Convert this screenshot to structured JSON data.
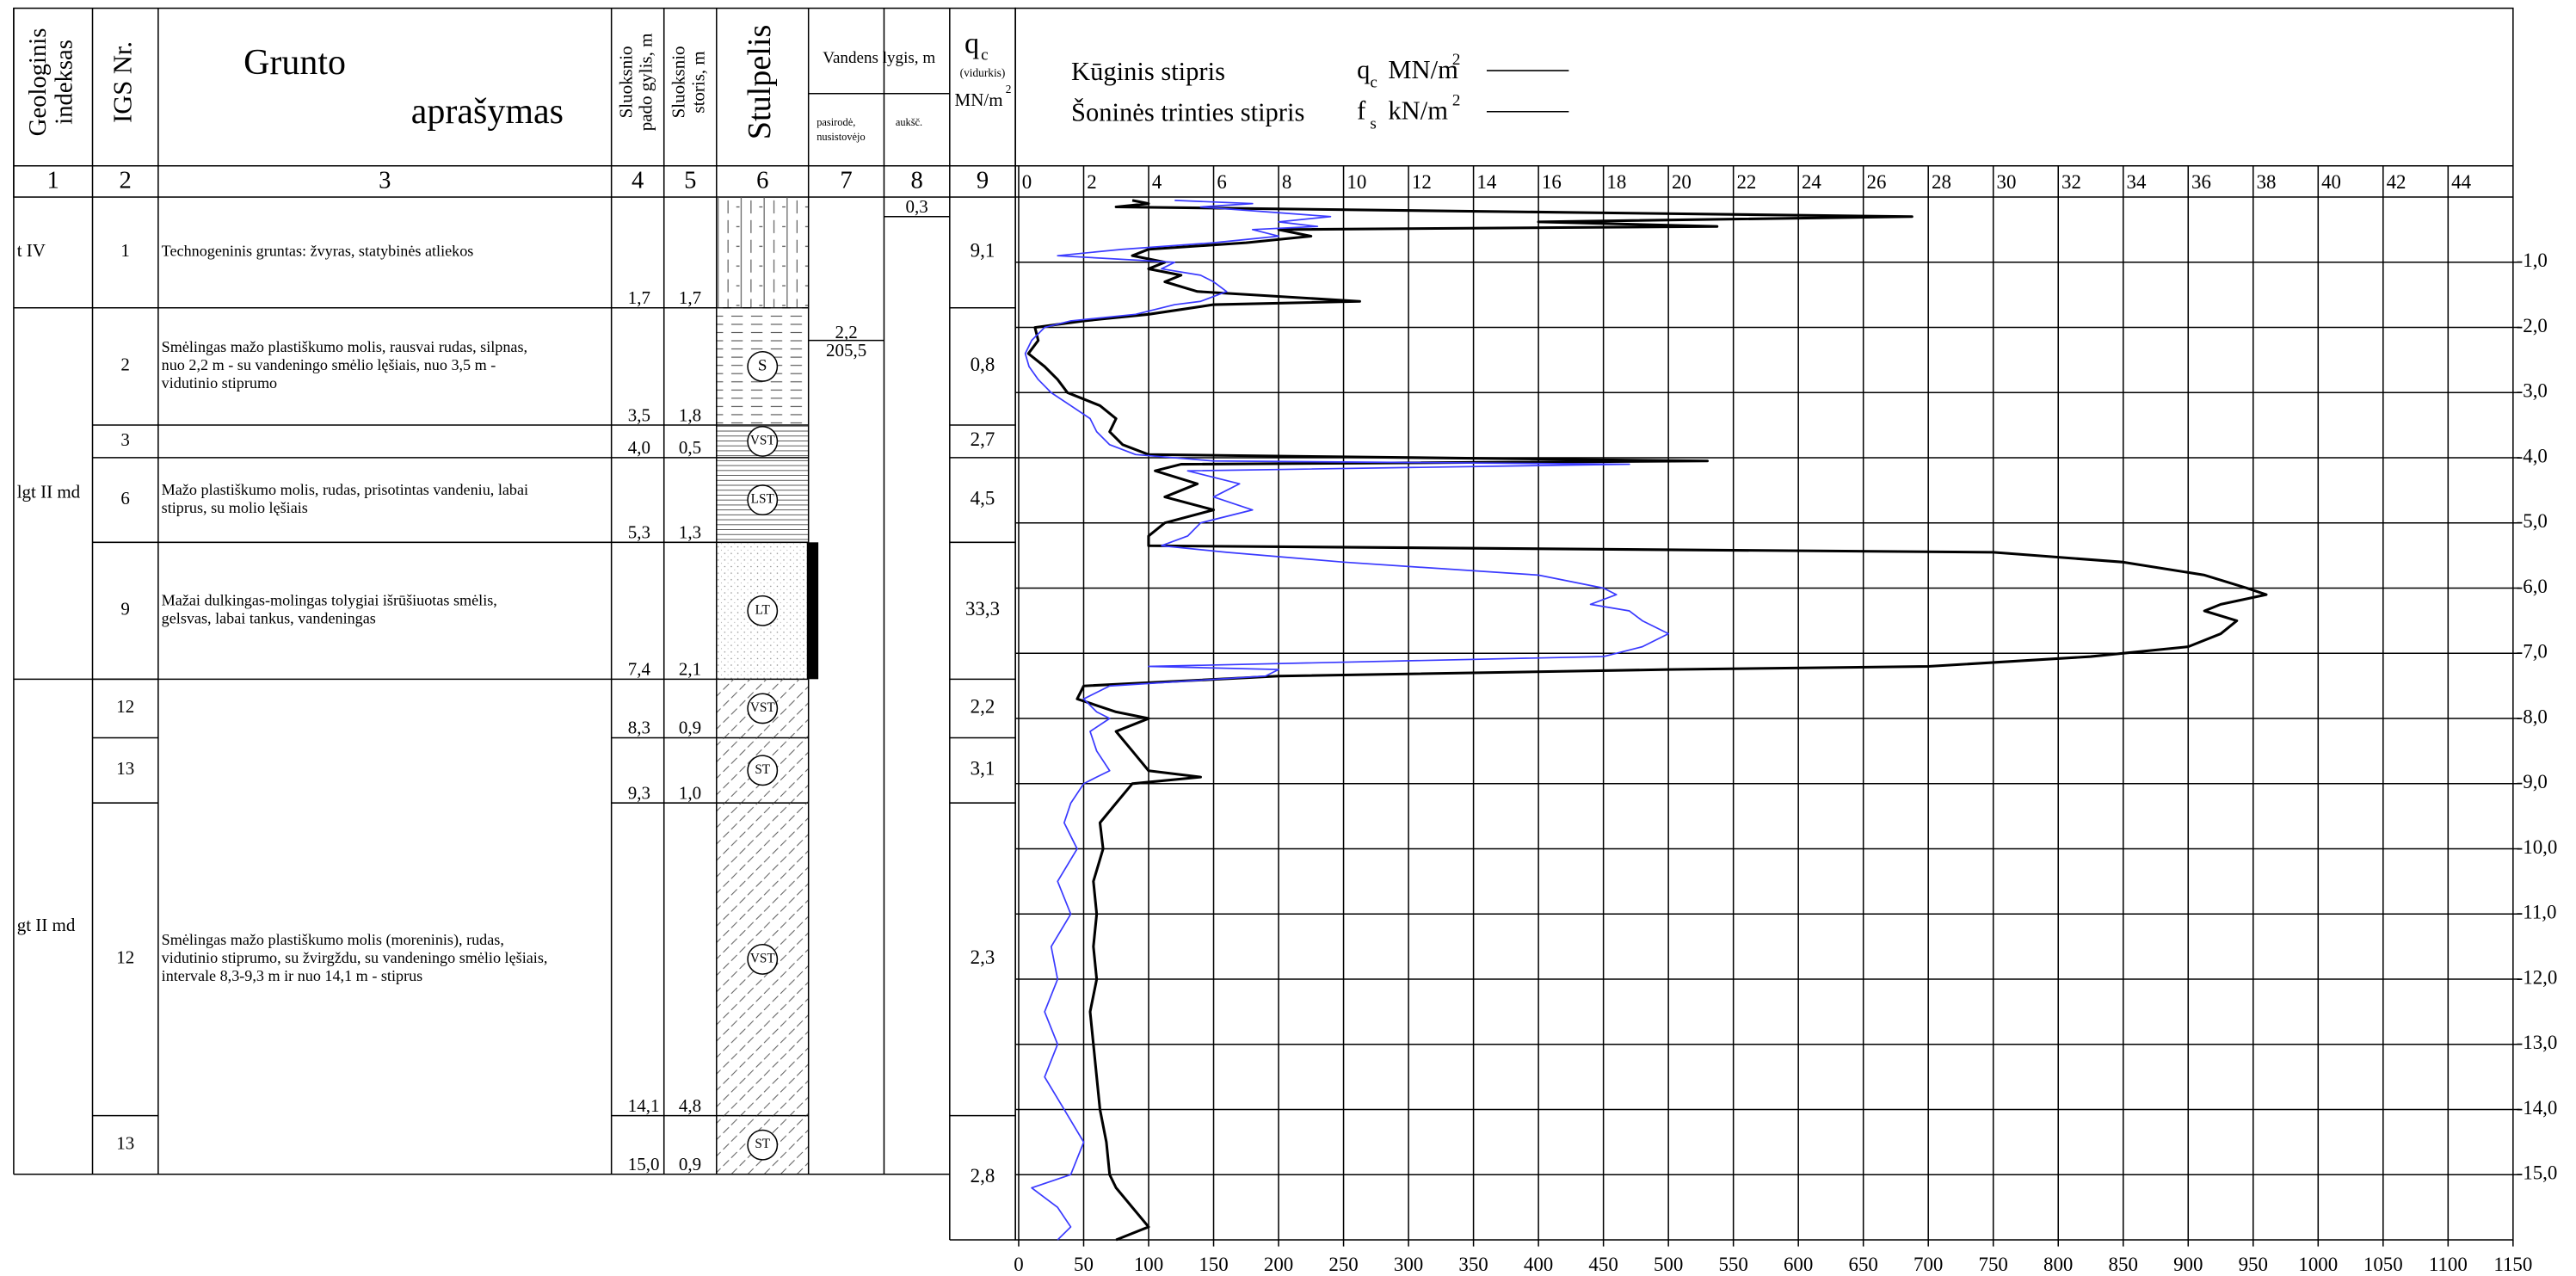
{
  "headers": {
    "geo_index": [
      "Geologinis",
      "indeksas"
    ],
    "igs": "IGS Nr.",
    "description": [
      "Grunto",
      "aprašymas"
    ],
    "bottom_depth": [
      "Sluoksnio",
      "pado gylis, m"
    ],
    "thickness": [
      "Sluoksnio",
      "storis, m"
    ],
    "column": "Stulpelis",
    "water": "Vandens lygis, m",
    "water_appeared": [
      "pasirodė,",
      "nusistovėjo"
    ],
    "water_alt": "aukšč.",
    "qc": "q",
    "qc_sub": "c",
    "qc_avg": "(vidurkis)",
    "qc_unit": "MN/m",
    "qc_unit_sup": "2"
  },
  "column_numbers": [
    "1",
    "2",
    "3",
    "4",
    "5",
    "6",
    "7",
    "8",
    "9"
  ],
  "geo_units": [
    {
      "label": "t IV",
      "layers": [
        {
          "igs": "1",
          "description": [
            "Technogeninis gruntas: žvyras, statybinės atliekos"
          ],
          "bottom": {
            "value": 1.7,
            "label": "1,7"
          },
          "thickness": "1,7",
          "qc_avg": "9,1"
        }
      ]
    },
    {
      "label": "lgt II md",
      "layers": [
        {
          "igs": "2",
          "description": [
            "Smėlingas mažo plastiškumo molis, rausvai rudas, silpnas,",
            "nuo 2,2 m - su vandeningo smėlio lęšiais, nuo 3,5 m -",
            "vidutinio stiprumo"
          ],
          "bottom": {
            "value": 3.5,
            "label": "3,5"
          },
          "thickness": "1,8",
          "symbol": "S",
          "qc_avg": "0,8"
        },
        {
          "igs": "3",
          "bottom": {
            "value": 4.0,
            "label": "4,0"
          },
          "thickness": "0,5",
          "symbol": "VST",
          "qc_avg": "2,7"
        },
        {
          "igs": "6",
          "description": [
            "Mažo plastiškumo molis, rudas, prisotintas vandeniu, labai",
            "stiprus, su molio lęšiais"
          ],
          "bottom": {
            "value": 5.3,
            "label": "5,3"
          },
          "thickness": "1,3",
          "symbol": "LST",
          "qc_avg": "4,5"
        },
        {
          "igs": "9",
          "description": [
            "Mažai dulkingas-molingas tolygiai išrūšiuotas smėlis,",
            "gelsvas, labai tankus, vandeningas"
          ],
          "bottom": {
            "value": 7.4,
            "label": "7,4"
          },
          "thickness": "2,1",
          "symbol": "LT",
          "qc_avg": "33,3"
        }
      ]
    },
    {
      "label": "gt II md",
      "layers": [
        {
          "igs": "12",
          "bottom": {
            "value": 8.3,
            "label": "8,3"
          },
          "thickness": "0,9",
          "symbol": "VST",
          "qc_avg": "2,2"
        },
        {
          "igs": "13",
          "bottom": {
            "value": 9.3,
            "label": "9,3"
          },
          "thickness": "1,0",
          "symbol": "ST",
          "qc_avg": "3,1"
        },
        {
          "igs": "12",
          "description": [
            "Smėlingas mažo plastiškumo molis (moreninis), rudas,",
            "vidutinio stiprumo, su žvirgždu, su vandeningo smėlio lęšiais,",
            "intervale 8,3-9,3 m ir nuo 14,1 m - stiprus"
          ],
          "bottom": {
            "value": 14.1,
            "label": "14,1"
          },
          "thickness": "4,8",
          "symbol": "VST",
          "qc_avg": "2,3"
        },
        {
          "igs": "13",
          "bottom": {
            "value": 15.0,
            "label": "15,0"
          },
          "thickness": "0,9",
          "symbol": "ST",
          "qc_avg": "2,8"
        }
      ]
    }
  ],
  "water": {
    "depth": {
      "value": 2.2,
      "label": "2,2"
    },
    "altitude": "205,5",
    "level": {
      "value": 0.3,
      "label": "0,3"
    }
  },
  "chart_data": {
    "type": "line",
    "depth": [
      -0.05,
      -0.1,
      -0.15,
      -0.3,
      -0.38,
      -0.45,
      -0.5,
      -0.6,
      -0.7,
      -0.8,
      -0.9,
      -1.0,
      -1.1,
      -1.2,
      -1.3,
      -1.45,
      -1.6,
      -1.65,
      -1.8,
      -1.9,
      -2.0,
      -2.2,
      -2.4,
      -2.6,
      -2.8,
      -3.0,
      -3.2,
      -3.4,
      -3.6,
      -3.8,
      -3.95,
      -4.05,
      -4.1,
      -4.2,
      -4.4,
      -4.6,
      -4.8,
      -5.0,
      -5.2,
      -5.35,
      -5.45,
      -5.6,
      -5.8,
      -6.0,
      -6.1,
      -6.25,
      -6.35,
      -6.5,
      -6.7,
      -6.9,
      -7.05,
      -7.2,
      -7.25,
      -7.35,
      -7.5,
      -7.7,
      -7.9,
      -8.0,
      -8.2,
      -8.5,
      -8.8,
      -8.9,
      -9.0,
      -9.3,
      -9.6,
      -10.0,
      -10.5,
      -11.0,
      -11.5,
      -12.0,
      -12.5,
      -13.0,
      -13.5,
      -14.0,
      -14.5,
      -15.0,
      -15.2,
      -15.5,
      -15.8,
      -16.0
    ],
    "series": [
      {
        "name": "Kūginis stipris",
        "symbol": "q",
        "symbol_sub": "c",
        "unit": "MN/m",
        "unit_sup": "2",
        "color": "#000000",
        "values": [
          3.5,
          4,
          3,
          27.5,
          16,
          21.5,
          8,
          9,
          7,
          4,
          3.5,
          4.5,
          4,
          5,
          4.5,
          5.5,
          10.5,
          6,
          4,
          2,
          0.5,
          0.6,
          0.3,
          0.8,
          1.2,
          1.5,
          2.5,
          3,
          2.8,
          3.2,
          4,
          21.2,
          5,
          4.2,
          5.5,
          4.5,
          6,
          4.5,
          4,
          4,
          30,
          34,
          36.5,
          37.8,
          38.4,
          37,
          36.5,
          37.5,
          37,
          36,
          33,
          28,
          20,
          8,
          2,
          1.8,
          3,
          4,
          3,
          3.5,
          4,
          5.6,
          3.5,
          3,
          2.5,
          2.6,
          2.3,
          2.4,
          2.3,
          2.4,
          2.2,
          2.3,
          2.4,
          2.5,
          2.7,
          2.8,
          3,
          3.5,
          4,
          3
        ]
      },
      {
        "name": "Šoninės trinties stipris",
        "symbol": "f",
        "symbol_sub": "s",
        "unit": "kN/m",
        "unit_sup": " 2",
        "color": "#3a3aff",
        "axis": "x2",
        "values": [
          120,
          180,
          140,
          240,
          200,
          230,
          180,
          200,
          150,
          80,
          30,
          120,
          110,
          140,
          150,
          160,
          140,
          120,
          90,
          40,
          20,
          10,
          5,
          8,
          15,
          25,
          40,
          55,
          60,
          70,
          90,
          150,
          470,
          130,
          170,
          150,
          180,
          140,
          130,
          110,
          160,
          250,
          400,
          450,
          460,
          440,
          470,
          480,
          500,
          480,
          450,
          100,
          200,
          190,
          70,
          50,
          60,
          70,
          55,
          60,
          70,
          60,
          50,
          40,
          35,
          45,
          30,
          40,
          25,
          30,
          20,
          30,
          20,
          35,
          50,
          40,
          10,
          30,
          40,
          30
        ]
      }
    ],
    "xlim": [
      0,
      46
    ],
    "xticks": [
      0,
      2,
      4,
      6,
      8,
      10,
      12,
      14,
      16,
      18,
      20,
      22,
      24,
      26,
      28,
      30,
      32,
      34,
      36,
      38,
      40,
      42,
      44
    ],
    "x2lim": [
      0,
      1150
    ],
    "x2ticks": [
      0,
      50,
      100,
      150,
      200,
      250,
      300,
      350,
      400,
      450,
      500,
      550,
      600,
      650,
      700,
      750,
      800,
      850,
      900,
      950,
      1000,
      1050,
      1100,
      1150
    ],
    "ylim": [
      0,
      -16
    ],
    "yticks": [
      {
        "value": -1,
        "label": "-1,0"
      },
      {
        "value": -2,
        "label": "-2,0"
      },
      {
        "value": -3,
        "label": "-3,0"
      },
      {
        "value": -4,
        "label": "-4,0"
      },
      {
        "value": -5,
        "label": "-5,0"
      },
      {
        "value": -6,
        "label": "-6,0"
      },
      {
        "value": -7,
        "label": "-7,0"
      },
      {
        "value": -8,
        "label": "-8,0"
      },
      {
        "value": -9,
        "label": "-9,0"
      },
      {
        "value": -10,
        "label": "-10,0"
      },
      {
        "value": -11,
        "label": "-11,0"
      },
      {
        "value": -12,
        "label": "-12,0"
      },
      {
        "value": -13,
        "label": "-13,0"
      },
      {
        "value": -14,
        "label": "-14,0"
      },
      {
        "value": -15,
        "label": "-15,0"
      }
    ],
    "grid": true
  }
}
